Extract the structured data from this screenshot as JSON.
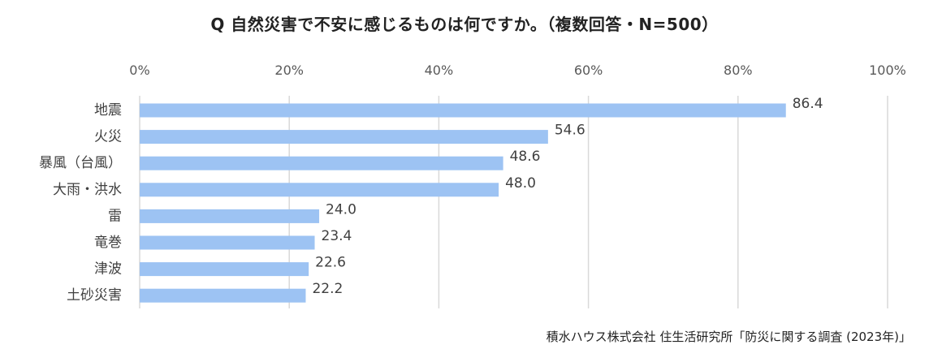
{
  "chart_data": {
    "type": "bar",
    "orientation": "horizontal",
    "title": "Q 自然災害で不安に感じるものは何ですか。（複数回答・N=500）",
    "source": "積水ハウス株式会社 住生活研究所「防災に関する調査 (2023年)」",
    "categories": [
      "地震",
      "火災",
      "暴風（台風）",
      "大雨・洪水",
      "雷",
      "竜巻",
      "津波",
      "土砂災害"
    ],
    "values": [
      86.4,
      54.6,
      48.6,
      48.0,
      24.0,
      23.4,
      22.6,
      22.2
    ],
    "value_labels": [
      "86.4",
      "54.6",
      "48.6",
      "48.0",
      "24.0",
      "23.4",
      "22.6",
      "22.2"
    ],
    "xlim": [
      0,
      100
    ],
    "xticks": [
      0,
      20,
      40,
      60,
      80,
      100
    ],
    "xtick_labels": [
      "0%",
      "20%",
      "40%",
      "60%",
      "80%",
      "100%"
    ],
    "xaxis_position": "top",
    "grid": true,
    "legend": "none",
    "bar_color": "#9dc3f3",
    "grid_color": "#d9d9d9"
  }
}
